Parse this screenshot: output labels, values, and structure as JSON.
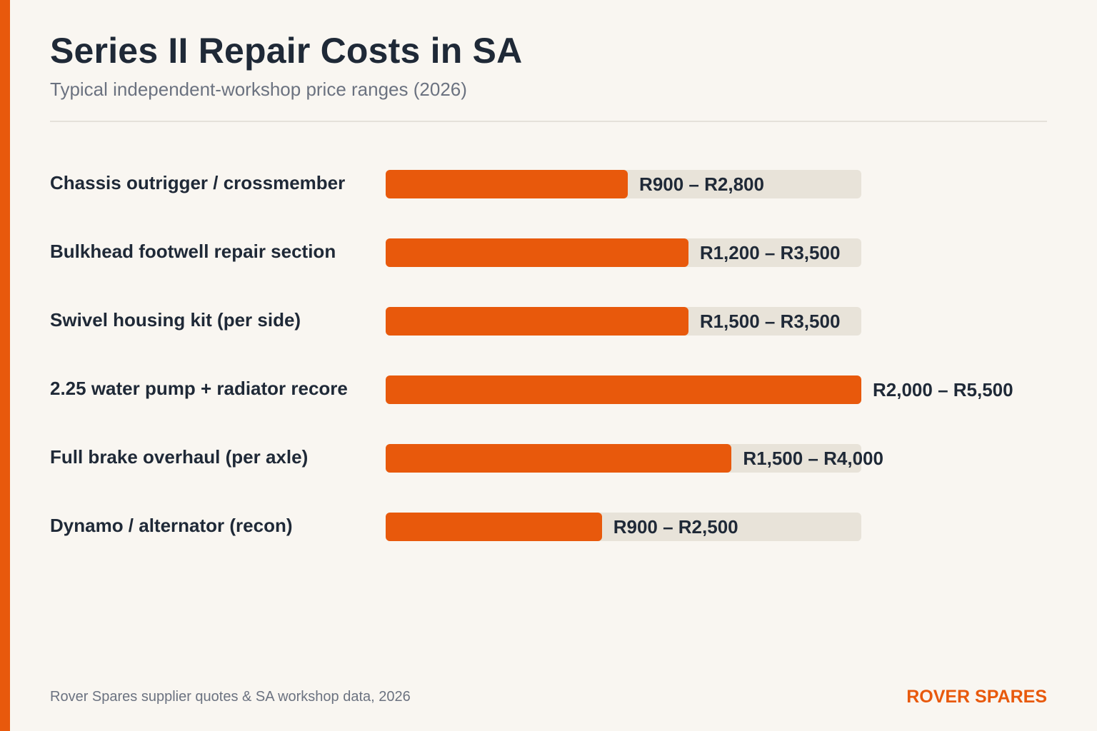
{
  "colors": {
    "accent": "#e8590c",
    "track": "#e8e3d9",
    "text": "#1f2937",
    "muted": "#6b7280"
  },
  "header": {
    "title": "Series II Repair Costs in SA",
    "subtitle": "Typical independent-workshop price ranges (2026)"
  },
  "chart_data": {
    "type": "bar",
    "orientation": "horizontal",
    "categories": [
      "Chassis outrigger / crossmember",
      "Bulkhead footwell repair section",
      "Swivel housing kit (per side)",
      "2.25 water pump + radiator recore",
      "Full brake overhaul (per axle)",
      "Dynamo / alternator (recon)"
    ],
    "values": [
      2800,
      3500,
      3500,
      5500,
      4000,
      2500
    ],
    "ranges": [
      [
        900,
        2800
      ],
      [
        1200,
        3500
      ],
      [
        1500,
        3500
      ],
      [
        2000,
        5500
      ],
      [
        1500,
        4000
      ],
      [
        900,
        2500
      ]
    ],
    "value_labels": [
      "R900 – R2,800",
      "R1,200 – R3,500",
      "R1,500 – R3,500",
      "R2,000 – R5,500",
      "R1,500 – R4,000",
      "R900 – R2,500"
    ],
    "xlim": [
      0,
      5500
    ],
    "grid": false,
    "legend": "none"
  },
  "footer": {
    "source": "Rover Spares supplier quotes & SA workshop data, 2026",
    "brand": "ROVER SPARES"
  }
}
